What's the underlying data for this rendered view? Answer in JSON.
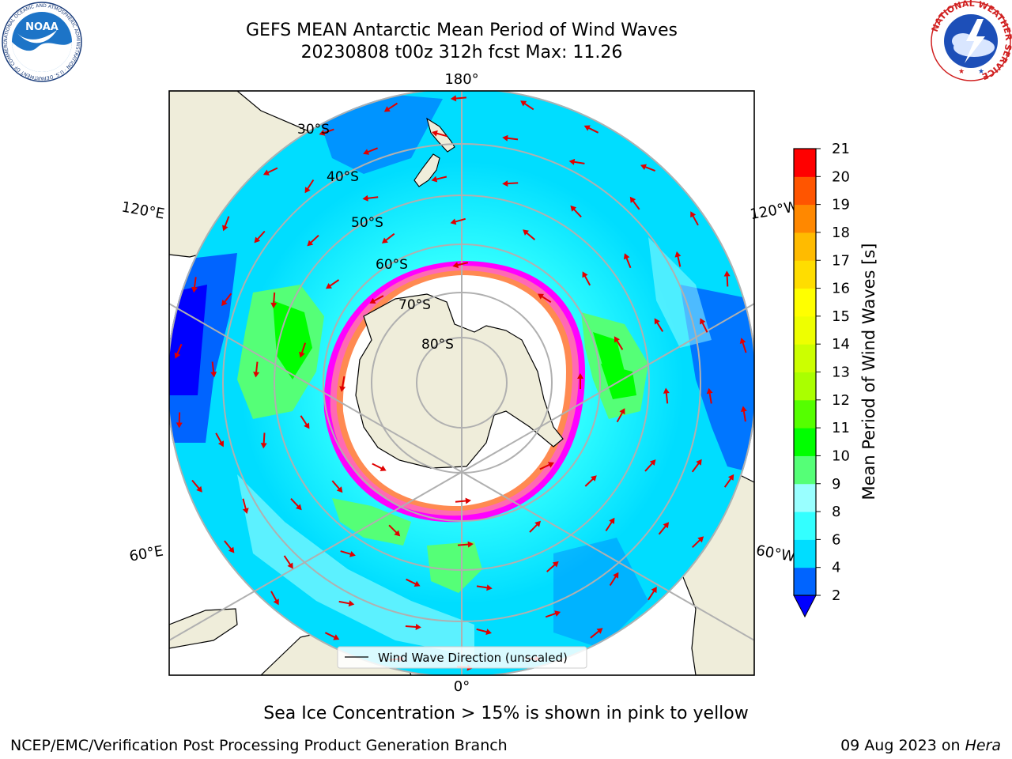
{
  "title": {
    "line1": "GEFS MEAN Antarctic Mean Period of Wind Waves",
    "line2": "20230808 t00z 312h fcst   Max: 11.26"
  },
  "map": {
    "projection": "south-polar-stereographic",
    "lon_labels": [
      "180°",
      "120°E",
      "120°W",
      "60°E",
      "60°W",
      "0°"
    ],
    "lat_labels": [
      "30°S",
      "40°S",
      "50°S",
      "60°S",
      "70°S",
      "80°S"
    ],
    "legend_label": "Wind Wave Direction (unscaled)",
    "vector_color": "#e00000",
    "land_color": "#efedda",
    "ice_colors": [
      "#ff00ff",
      "#ff69b4",
      "#ffa500",
      "#ffff00"
    ]
  },
  "colorbar": {
    "label": "Mean Period of Wind Waves [s]",
    "ticks": [
      "2",
      "4",
      "6",
      "8",
      "9",
      "10",
      "11",
      "12",
      "13",
      "14",
      "15",
      "16",
      "17",
      "18",
      "19",
      "20",
      "21"
    ],
    "colors": [
      "#0064ff",
      "#00ddff",
      "#33ffff",
      "#99ffff",
      "#55ff77",
      "#00ff00",
      "#55ff00",
      "#aaff00",
      "#ccff00",
      "#eeff00",
      "#ffff00",
      "#ffdd00",
      "#ffbb00",
      "#ff8800",
      "#ff5500",
      "#ff0000"
    ],
    "under_color": "#0000ff"
  },
  "logos": {
    "noaa_text": "NOAA",
    "noaa_ring": "NATIONAL OCEANIC AND ATMOSPHERIC ADMINISTRATION · U.S. DEPARTMENT OF COMMERCE",
    "nws_ring": "NATIONAL WEATHER SERVICE"
  },
  "footer": {
    "subnote": "Sea Ice Concentration > 15% is shown in pink to yellow",
    "credit": "NCEP/EMC/Verification Post Processing Product Generation Branch",
    "date": "09 Aug 2023 on",
    "machine": "Hera"
  }
}
